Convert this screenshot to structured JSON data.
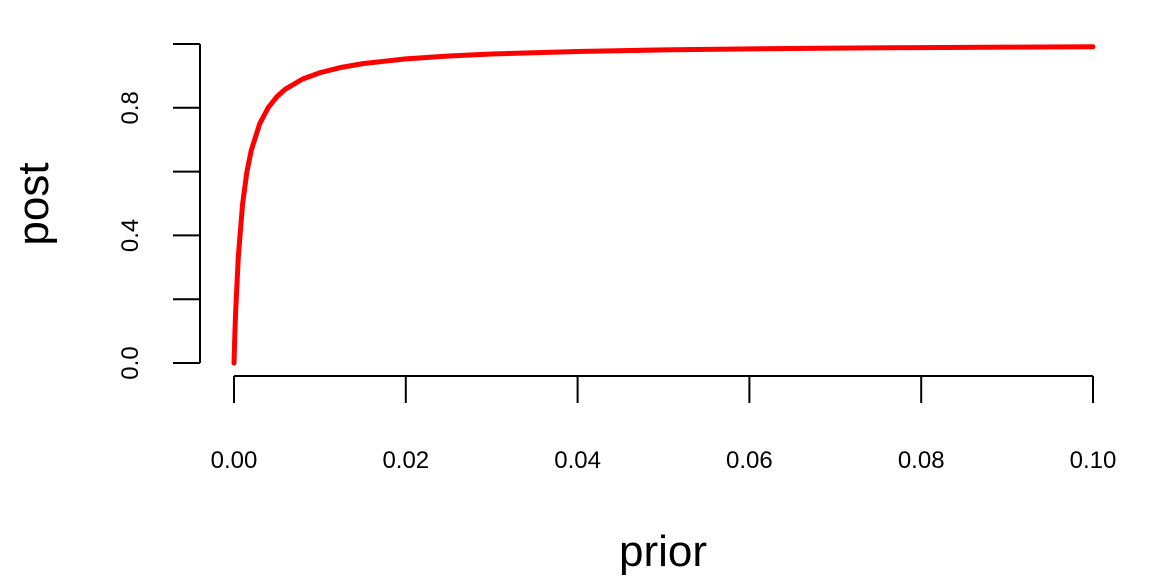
{
  "chart_data": {
    "type": "line",
    "title": "",
    "xlabel": "prior",
    "ylabel": "post",
    "xlim": [
      0,
      0.1
    ],
    "ylim": [
      0,
      1
    ],
    "x_ticks": [
      0,
      0.02,
      0.04,
      0.06,
      0.08,
      0.1
    ],
    "x_tick_labels": [
      "0.00",
      "0.02",
      "0.04",
      "0.06",
      "0.08",
      "0.10"
    ],
    "y_ticks": [
      0,
      0.2,
      0.4,
      0.6,
      0.8,
      1.0
    ],
    "y_tick_labels": [
      "0.0",
      "",
      "0.4",
      "",
      "0.8",
      ""
    ],
    "grid": false,
    "legend": "none",
    "series": [
      {
        "color": "#ff0000",
        "x": [
          0,
          0.0001,
          0.0002,
          0.0005,
          0.001,
          0.0015,
          0.002,
          0.003,
          0.004,
          0.005,
          0.006,
          0.008,
          0.01,
          0.0125,
          0.015,
          0.02,
          0.025,
          0.03,
          0.04,
          0.05,
          0.06,
          0.07,
          0.08,
          0.09,
          0.1
        ],
        "y": [
          0,
          0.0902,
          0.1655,
          0.3319,
          0.4985,
          0.5989,
          0.6659,
          0.7506,
          0.8012,
          0.8349,
          0.8588,
          0.8903,
          0.9099,
          0.9268,
          0.9385,
          0.9533,
          0.9625,
          0.9687,
          0.9766,
          0.9814,
          0.9847,
          0.987,
          0.9888,
          0.9902,
          0.9913
        ]
      }
    ]
  }
}
